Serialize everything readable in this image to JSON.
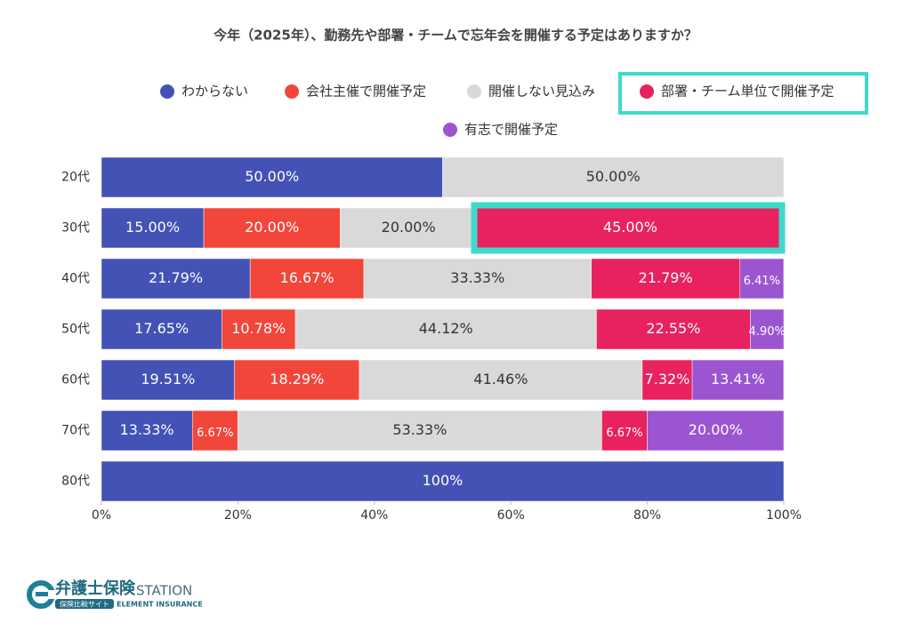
{
  "chart_data": {
    "type": "stacked-bar-horizontal",
    "title": "今年（2025年）、勤務先や部署・チームで忘年会を開催する予定はありますか？",
    "categories": [
      "20代",
      "30代",
      "40代",
      "50代",
      "60代",
      "70代",
      "80代"
    ],
    "series": [
      {
        "name": "わからない",
        "color": "#4451b5",
        "values": [
          50.0,
          15.0,
          21.79,
          17.65,
          19.51,
          13.33,
          100
        ],
        "value_labels": [
          "50.00%",
          "15.00%",
          "21.79%",
          "17.65%",
          "19.51%",
          "13.33%",
          "100%"
        ]
      },
      {
        "name": "会社主催で開催予定",
        "color": "#f2463a",
        "values": [
          null,
          20.0,
          16.67,
          10.78,
          18.29,
          6.67,
          null
        ],
        "value_labels": [
          null,
          "20.00%",
          "16.67%",
          "10.78%",
          "18.29%",
          "6.67%",
          null
        ]
      },
      {
        "name": "開催しない見込み",
        "color": "#d9d9d9",
        "values": [
          50.0,
          20.0,
          33.33,
          44.12,
          41.46,
          53.33,
          null
        ],
        "value_labels": [
          "50.00%",
          "20.00%",
          "33.33%",
          "44.12%",
          "41.46%",
          "53.33%",
          null
        ]
      },
      {
        "name": "部署・チーム単位で開催予定",
        "color": "#e8225f",
        "values": [
          null,
          45.0,
          21.79,
          22.55,
          7.32,
          6.67,
          null
        ],
        "value_labels": [
          null,
          "45.00%",
          "21.79%",
          "22.55%",
          "7.32%",
          "6.67%",
          null
        ]
      },
      {
        "name": "有志で開催予定",
        "color": "#9b55d1",
        "values": [
          null,
          null,
          6.41,
          4.9,
          13.41,
          20.0,
          null
        ],
        "value_labels": [
          null,
          null,
          "6.41%",
          "4.90%",
          "13.41%",
          "20.00%",
          null
        ]
      }
    ],
    "xlim": [
      0,
      100
    ],
    "xticks": [
      {
        "value": 0,
        "label": "0%"
      },
      {
        "value": 20,
        "label": "20%"
      },
      {
        "value": 40,
        "label": "40%"
      },
      {
        "value": 60,
        "label": "60%"
      },
      {
        "value": 80,
        "label": "80%"
      },
      {
        "value": 100,
        "label": "100%"
      }
    ],
    "legend": "top"
  },
  "logo": {
    "name": "弁護士保険",
    "suffix": "STATION",
    "tagline": "保険比較サイト",
    "company": "ELEMENT INSURANCE"
  }
}
